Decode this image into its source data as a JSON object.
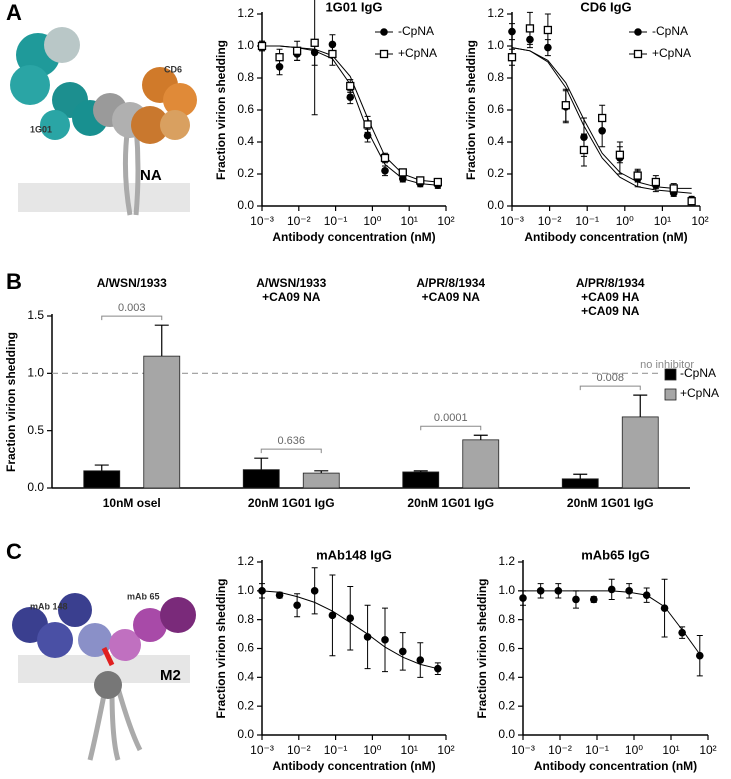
{
  "panel_a": {
    "letter": "A",
    "labels": [
      "1G01",
      "CD6",
      "NA"
    ]
  },
  "panel_b": {
    "letter": "B"
  },
  "panel_c": {
    "letter": "C",
    "labels": [
      "mAb 148",
      "mAb 65",
      "M2"
    ]
  },
  "chart_data": [
    {
      "type": "scatter",
      "title": "1G01 IgG",
      "x_label": "Antibody concentration (nM)",
      "y_label": "Fraction virion shedding",
      "log_x": true,
      "xlim": [
        0.001,
        100
      ],
      "xticks": [
        {
          "value": 0.001,
          "label": "10⁻³"
        },
        {
          "value": 0.01,
          "label": "10⁻²"
        },
        {
          "value": 0.1,
          "label": "10⁻¹"
        },
        {
          "value": 1,
          "label": "10⁰"
        },
        {
          "value": 10,
          "label": "10¹"
        },
        {
          "value": 100,
          "label": "10²"
        }
      ],
      "ylim": [
        0,
        1.2
      ],
      "yticks": [
        {
          "value": 0,
          "label": "0.0"
        },
        0.2,
        0.4,
        0.6,
        0.8,
        {
          "value": 1,
          "label": "1.0"
        },
        1.2
      ],
      "legend": "top-right",
      "x": [
        0.001,
        0.003,
        0.009,
        0.027,
        0.082,
        0.25,
        0.74,
        2.2,
        6.7,
        20,
        60
      ],
      "series": [
        {
          "name": "-CpNA",
          "color": "#000000",
          "marker": "circle",
          "values": [
            1.0,
            0.87,
            0.95,
            0.96,
            1.01,
            0.68,
            0.44,
            0.22,
            0.17,
            0.14,
            0.13
          ],
          "errors": [
            0.03,
            0.05,
            0.04,
            0.08,
            0.06,
            0.04,
            0.04,
            0.03,
            0.02,
            0.02,
            0.02
          ],
          "fit": [
            1.0,
            1.0,
            0.99,
            0.97,
            0.92,
            0.76,
            0.47,
            0.26,
            0.17,
            0.14,
            0.13
          ]
        },
        {
          "name": "+CpNA",
          "color": "#000000",
          "marker": "open-square",
          "values": [
            1.0,
            0.93,
            0.97,
            1.02,
            0.95,
            0.75,
            0.51,
            0.3,
            0.21,
            0.16,
            0.15
          ],
          "errors": [
            0.03,
            0.05,
            0.06,
            0.45,
            0.07,
            0.04,
            0.05,
            0.03,
            0.02,
            0.02,
            0.02
          ],
          "fit": [
            1.0,
            1.0,
            0.99,
            0.98,
            0.94,
            0.81,
            0.55,
            0.31,
            0.2,
            0.16,
            0.15
          ]
        }
      ]
    },
    {
      "type": "scatter",
      "title": "CD6 IgG",
      "x_label": "Antibody concentration (nM)",
      "y_label": "Fraction virion shedding",
      "log_x": true,
      "xlim": [
        0.001,
        100
      ],
      "xticks": [
        {
          "value": 0.001,
          "label": "10⁻³"
        },
        {
          "value": 0.01,
          "label": "10⁻²"
        },
        {
          "value": 0.1,
          "label": "10⁻¹"
        },
        {
          "value": 1,
          "label": "10⁰"
        },
        {
          "value": 10,
          "label": "10¹"
        },
        {
          "value": 100,
          "label": "10²"
        }
      ],
      "ylim": [
        0,
        1.2
      ],
      "yticks": [
        {
          "value": 0,
          "label": "0.0"
        },
        0.2,
        0.4,
        0.6,
        0.8,
        {
          "value": 1,
          "label": "1.0"
        },
        1.2
      ],
      "legend": "top-right",
      "x": [
        0.001,
        0.003,
        0.009,
        0.027,
        0.082,
        0.25,
        0.74,
        2.2,
        6.7,
        20,
        60
      ],
      "series": [
        {
          "name": "-CpNA",
          "color": "#000000",
          "marker": "circle",
          "values": [
            1.09,
            1.04,
            0.99,
            0.62,
            0.43,
            0.47,
            0.3,
            0.17,
            0.13,
            0.08,
            0.04
          ],
          "errors": [
            0.05,
            0.05,
            0.05,
            0.1,
            0.12,
            0.1,
            0.1,
            0.05,
            0.04,
            0.02,
            0.02
          ],
          "fit": [
            0.99,
            0.97,
            0.9,
            0.74,
            0.5,
            0.3,
            0.18,
            0.12,
            0.1,
            0.09,
            0.08
          ]
        },
        {
          "name": "+CpNA",
          "color": "#000000",
          "marker": "open-square",
          "values": [
            0.93,
            1.11,
            1.1,
            0.63,
            0.35,
            0.55,
            0.32,
            0.19,
            0.15,
            0.11,
            0.03
          ],
          "errors": [
            0.05,
            0.1,
            0.1,
            0.1,
            0.1,
            0.08,
            0.05,
            0.04,
            0.04,
            0.03,
            0.02
          ],
          "fit": [
            0.99,
            0.97,
            0.91,
            0.77,
            0.54,
            0.33,
            0.21,
            0.15,
            0.12,
            0.11,
            0.11
          ]
        }
      ]
    },
    {
      "type": "bar",
      "y_label": "Fraction virion shedding",
      "groups": [
        [
          "A/WSN/1933"
        ],
        [
          "A/WSN/1933",
          "+CA09 NA"
        ],
        [
          "A/PR/8/1934",
          "+CA09 NA"
        ],
        [
          "A/PR/8/1934",
          "+CA09 HA",
          "+CA09 NA"
        ]
      ],
      "categories": [
        "10nM osel",
        "20nM 1G01 IgG",
        "20nM 1G01 IgG",
        "20nM 1G01 IgG"
      ],
      "ylim": [
        0,
        1.5
      ],
      "yticks": [
        {
          "value": 0,
          "label": "0.0"
        },
        0.5,
        {
          "value": 1,
          "label": "1.0"
        },
        1.5
      ],
      "reference_line": {
        "value": 1,
        "label": "no inhibitor"
      },
      "pvalues": [
        "0.003",
        "0.636",
        "0.0001",
        "0.008"
      ],
      "legend": "right",
      "series": [
        {
          "name": "-CpNA",
          "color": "#000000",
          "values": [
            0.15,
            0.16,
            0.14,
            0.08
          ],
          "errors": [
            0.05,
            0.1,
            0.01,
            0.04
          ]
        },
        {
          "name": "+CpNA",
          "color": "#a6a6a6",
          "values": [
            1.15,
            0.13,
            0.42,
            0.62
          ],
          "errors": [
            0.27,
            0.02,
            0.04,
            0.19
          ]
        }
      ]
    },
    {
      "type": "scatter",
      "title": "mAb148 IgG",
      "x_label": "Antibody concentration (nM)",
      "y_label": "Fraction virion shedding",
      "log_x": true,
      "xlim": [
        0.001,
        100
      ],
      "xticks": [
        {
          "value": 0.001,
          "label": "10⁻³"
        },
        {
          "value": 0.01,
          "label": "10⁻²"
        },
        {
          "value": 0.1,
          "label": "10⁻¹"
        },
        {
          "value": 1,
          "label": "10⁰"
        },
        {
          "value": 10,
          "label": "10¹"
        },
        {
          "value": 100,
          "label": "10²"
        }
      ],
      "ylim": [
        0,
        1.2
      ],
      "yticks": [
        {
          "value": 0,
          "label": "0.0"
        },
        0.2,
        0.4,
        0.6,
        0.8,
        {
          "value": 1,
          "label": "1.0"
        },
        1.2
      ],
      "x": [
        0.001,
        0.003,
        0.009,
        0.027,
        0.082,
        0.25,
        0.74,
        2.2,
        6.7,
        20,
        60
      ],
      "series": [
        {
          "color": "#000000",
          "marker": "circle",
          "values": [
            1.0,
            0.97,
            0.9,
            1.0,
            0.83,
            0.81,
            0.68,
            0.66,
            0.58,
            0.52,
            0.46
          ],
          "errors": [
            0.05,
            0.02,
            0.08,
            0.16,
            0.28,
            0.22,
            0.22,
            0.22,
            0.13,
            0.12,
            0.04
          ],
          "fit": [
            1.0,
            0.99,
            0.96,
            0.92,
            0.86,
            0.78,
            0.7,
            0.61,
            0.54,
            0.49,
            0.46
          ]
        }
      ]
    },
    {
      "type": "scatter",
      "title": "mAb65 IgG",
      "x_label": "Antibody concentration (nM)",
      "y_label": "Fraction virion shedding",
      "log_x": true,
      "xlim": [
        0.001,
        100
      ],
      "xticks": [
        {
          "value": 0.001,
          "label": "10⁻³"
        },
        {
          "value": 0.01,
          "label": "10⁻²"
        },
        {
          "value": 0.1,
          "label": "10⁻¹"
        },
        {
          "value": 1,
          "label": "10⁰"
        },
        {
          "value": 10,
          "label": "10¹"
        },
        {
          "value": 100,
          "label": "10²"
        }
      ],
      "ylim": [
        0,
        1.2
      ],
      "yticks": [
        {
          "value": 0,
          "label": "0.0"
        },
        0.2,
        0.4,
        0.6,
        0.8,
        {
          "value": 1,
          "label": "1.0"
        },
        1.2
      ],
      "x": [
        0.001,
        0.003,
        0.009,
        0.027,
        0.082,
        0.25,
        0.74,
        2.2,
        6.7,
        20,
        60
      ],
      "series": [
        {
          "color": "#000000",
          "marker": "circle",
          "values": [
            0.95,
            1.0,
            1.0,
            0.94,
            0.94,
            1.01,
            1.0,
            0.97,
            0.88,
            0.71,
            0.55
          ],
          "errors": [
            0.05,
            0.05,
            0.05,
            0.06,
            0.02,
            0.07,
            0.05,
            0.05,
            0.2,
            0.04,
            0.14
          ],
          "fit": [
            1.0,
            1.0,
            1.0,
            1.0,
            1.0,
            1.0,
            0.99,
            0.97,
            0.89,
            0.73,
            0.56
          ]
        }
      ]
    }
  ]
}
